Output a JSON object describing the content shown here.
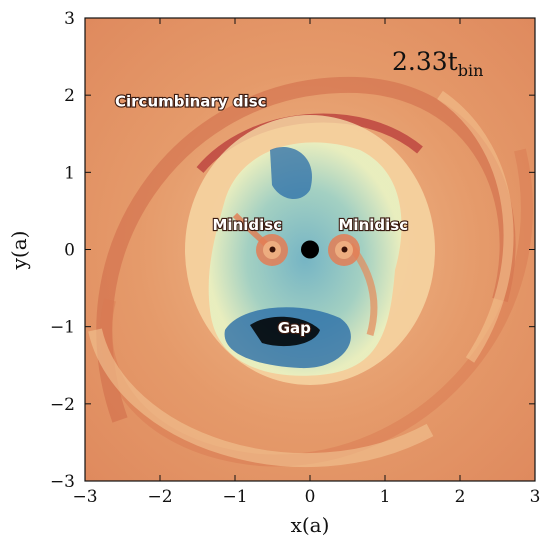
{
  "chart_data": {
    "type": "heatmap",
    "title": "",
    "xlabel": "x(a)",
    "ylabel": "y(a)",
    "xlim": [
      -3,
      3
    ],
    "ylim": [
      -3,
      3
    ],
    "xticks": [
      -3,
      -2,
      -1,
      0,
      1,
      2,
      3
    ],
    "yticks": [
      -3,
      -2,
      -1,
      0,
      1,
      2,
      3
    ],
    "xtick_labels": [
      "−3",
      "−2",
      "−1",
      "0",
      "1",
      "2",
      "3"
    ],
    "ytick_labels": [
      "−3",
      "−2",
      "−1",
      "0",
      "1",
      "2",
      "3"
    ],
    "time_label": {
      "main": "2.33t",
      "sub": "bin"
    },
    "colormap": [
      "#000000",
      "#2b6ea8",
      "#6fb3c6",
      "#e8efc0",
      "#f3c98a",
      "#e08a54",
      "#c94d3a"
    ],
    "annotations": [
      {
        "text": "Circumbinary disc",
        "x": -2.6,
        "y": 1.85
      },
      {
        "text": "Minidisc",
        "x": -1.3,
        "y": 0.25
      },
      {
        "text": "Minidisc",
        "x": 0.38,
        "y": 0.25
      },
      {
        "text": "Gap",
        "x": -0.43,
        "y": -1.08
      }
    ],
    "binary": {
      "barycenter": [
        0,
        0
      ],
      "stars": [
        [
          -0.5,
          0.0
        ],
        [
          0.46,
          0.0
        ]
      ]
    },
    "grid": false,
    "legend": "none"
  }
}
